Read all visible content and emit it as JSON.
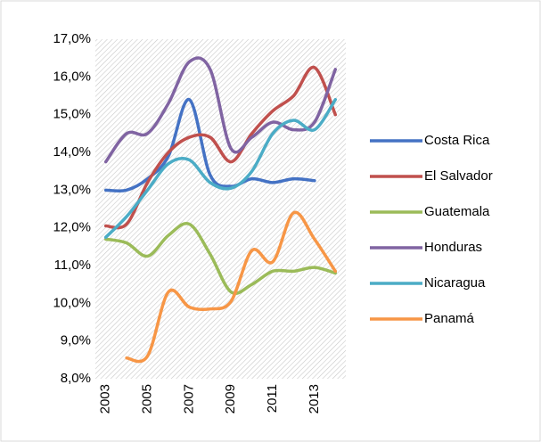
{
  "chart_data": {
    "type": "line",
    "categories": [
      2003,
      null,
      2005,
      null,
      2007,
      null,
      2009,
      null,
      2011,
      null,
      2013,
      null
    ],
    "series": [
      {
        "name": "Costa Rica",
        "color": "#4472c4",
        "values": [
          13.0,
          13.0,
          13.3,
          13.9,
          15.4,
          13.4,
          13.1,
          13.3,
          13.2,
          13.3,
          13.25,
          null
        ]
      },
      {
        "name": "El Salvador",
        "color": "#c0504d",
        "values": [
          12.05,
          12.1,
          13.2,
          14.0,
          14.4,
          14.4,
          13.75,
          14.5,
          15.1,
          15.5,
          16.25,
          15.0
        ]
      },
      {
        "name": "Guatemala",
        "color": "#9bbb59",
        "values": [
          11.7,
          11.6,
          11.25,
          11.8,
          12.1,
          11.3,
          10.3,
          10.5,
          10.85,
          10.85,
          10.95,
          10.8
        ]
      },
      {
        "name": "Honduras",
        "color": "#8064a2",
        "values": [
          13.75,
          14.5,
          14.5,
          15.3,
          16.4,
          16.2,
          14.1,
          14.4,
          14.8,
          14.6,
          14.8,
          16.2
        ]
      },
      {
        "name": "Nicaragua",
        "color": "#4bacc6",
        "values": [
          11.75,
          12.3,
          13.0,
          13.7,
          13.8,
          13.2,
          13.05,
          13.5,
          14.5,
          14.85,
          14.6,
          15.4
        ]
      },
      {
        "name": "Panamá",
        "color": "#f79646",
        "values": [
          null,
          8.55,
          8.6,
          10.3,
          9.9,
          9.85,
          10.05,
          11.4,
          11.1,
          12.4,
          11.7,
          10.85
        ]
      }
    ],
    "ylim": [
      8.0,
      17.0
    ],
    "yticks": [
      {
        "value": 8.0,
        "label": "8,0%"
      },
      {
        "value": 9.0,
        "label": "9,0%"
      },
      {
        "value": 10.0,
        "label": "10,0%"
      },
      {
        "value": 11.0,
        "label": "11,0%"
      },
      {
        "value": 12.0,
        "label": "12,0%"
      },
      {
        "value": 13.0,
        "label": "13,0%"
      },
      {
        "value": 14.0,
        "label": "14,0%"
      },
      {
        "value": 15.0,
        "label": "15,0%"
      },
      {
        "value": 16.0,
        "label": "16,0%"
      },
      {
        "value": 17.0,
        "label": "17,0%"
      }
    ],
    "legend": "right"
  }
}
